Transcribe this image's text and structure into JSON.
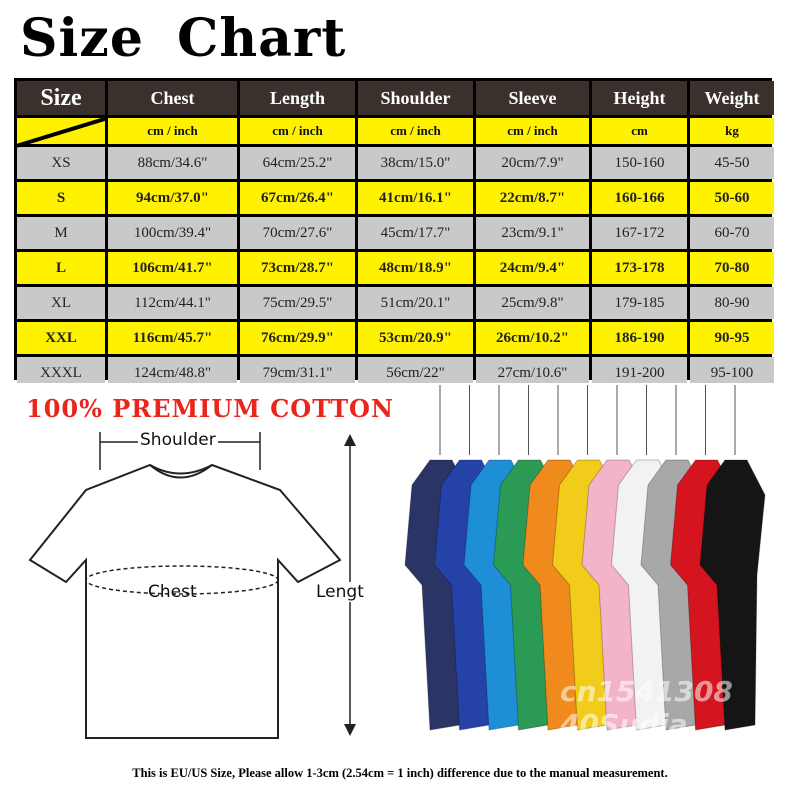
{
  "title": "Size  Chart",
  "table": {
    "headers": [
      "Size",
      "Chest",
      "Length",
      "Shoulder",
      "Sleeve",
      "Height",
      "Weight"
    ],
    "units": [
      "",
      "cm / inch",
      "cm / inch",
      "cm / inch",
      "cm / inch",
      "cm",
      "kg"
    ],
    "rows": [
      [
        "XS",
        "88cm/34.6\"",
        "64cm/25.2\"",
        "38cm/15.0\"",
        "20cm/7.9\"",
        "150-160",
        "45-50"
      ],
      [
        "S",
        "94cm/37.0\"",
        "67cm/26.4\"",
        "41cm/16.1\"",
        "22cm/8.7\"",
        "160-166",
        "50-60"
      ],
      [
        "M",
        "100cm/39.4\"",
        "70cm/27.6\"",
        "45cm/17.7\"",
        "23cm/9.1\"",
        "167-172",
        "60-70"
      ],
      [
        "L",
        "106cm/41.7\"",
        "73cm/28.7\"",
        "48cm/18.9\"",
        "24cm/9.4\"",
        "173-178",
        "70-80"
      ],
      [
        "XL",
        "112cm/44.1\"",
        "75cm/29.5\"",
        "51cm/20.1\"",
        "25cm/9.8\"",
        "179-185",
        "80-90"
      ],
      [
        "XXL",
        "116cm/45.7\"",
        "76cm/29.9\"",
        "53cm/20.9\"",
        "26cm/10.2\"",
        "186-190",
        "90-95"
      ],
      [
        "XXXL",
        "124cm/48.8\"",
        "79cm/31.1\"",
        "56cm/22\"",
        "27cm/10.6\"",
        "191-200",
        "95-100"
      ]
    ],
    "colors": {
      "header": "#3a302c",
      "highlight": "#fff200",
      "gray": "#c9c9c9"
    }
  },
  "premium": "100% PREMIUM COTTON",
  "diagram": {
    "shoulder": "Shoulder",
    "chest": "Chest",
    "length": "Lengt"
  },
  "shirt_colors": [
    "#2a3566",
    "#2542a8",
    "#1e8fd6",
    "#2a9a55",
    "#f08a1c",
    "#f2cc1a",
    "#f3b3c8",
    "#f2f2f2",
    "#a8a8a8",
    "#d4141e",
    "#151515"
  ],
  "watermark": "cn1541308 40Sudia",
  "footer": "This is EU/US Size, Please allow 1-3cm (2.54cm = 1 inch) difference due to the manual measurement."
}
